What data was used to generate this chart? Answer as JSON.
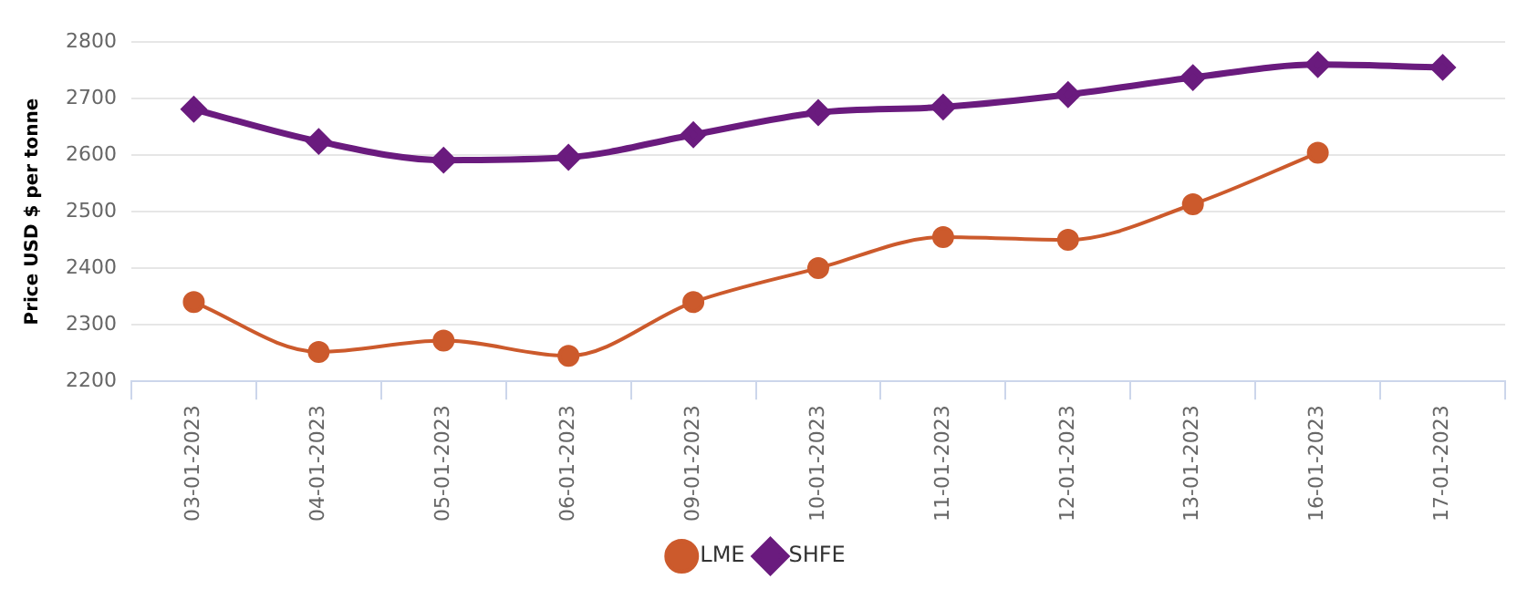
{
  "chart_data": {
    "type": "line",
    "ylabel": "Price USD $ per tonne",
    "categories": [
      "03-01-2023",
      "04-01-2023",
      "05-01-2023",
      "06-01-2023",
      "09-01-2023",
      "10-01-2023",
      "11-01-2023",
      "12-01-2023",
      "13-01-2023",
      "16-01-2023",
      "17-01-2023"
    ],
    "series": [
      {
        "name": "LME",
        "color": "#cc5a2c",
        "marker": "circle",
        "values": [
          2340,
          2252,
          2272,
          2245,
          2340,
          2400,
          2455,
          2450,
          2513,
          2604,
          null
        ]
      },
      {
        "name": "SHFE",
        "color": "#6a1b7e",
        "marker": "diamond",
        "values": [
          2681,
          2624,
          2591,
          2596,
          2636,
          2675,
          2685,
          2707,
          2737,
          2760,
          2755
        ]
      }
    ],
    "ylim": [
      2200,
      2800
    ],
    "yticks": [
      2200,
      2300,
      2400,
      2500,
      2600,
      2700,
      2800
    ],
    "grid": "y",
    "legend": "bottom"
  }
}
